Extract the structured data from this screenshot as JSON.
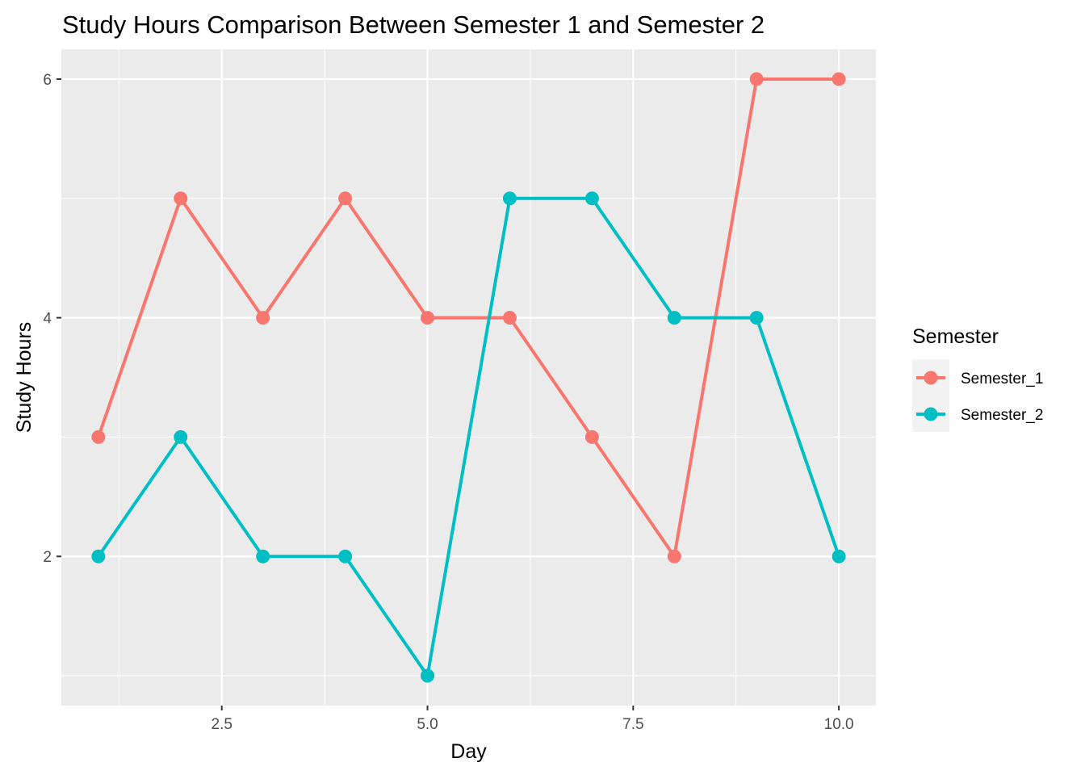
{
  "chart_data": {
    "type": "line",
    "title": "Study Hours Comparison Between Semester 1 and Semester 2",
    "xlabel": "Day",
    "ylabel": "Study Hours",
    "x": [
      1,
      2,
      3,
      4,
      5,
      6,
      7,
      8,
      9,
      10
    ],
    "xlim": [
      0.55,
      10.45
    ],
    "ylim": [
      0.75,
      6.25
    ],
    "x_ticks": [
      2.5,
      5.0,
      7.5,
      10.0
    ],
    "x_tick_labels": [
      "2.5",
      "5.0",
      "7.5",
      "10.0"
    ],
    "x_minor_ticks": [
      1.25,
      3.75,
      6.25,
      8.75
    ],
    "y_ticks": [
      2,
      4,
      6
    ],
    "y_tick_labels": [
      "2",
      "4",
      "6"
    ],
    "y_minor_ticks": [
      1,
      3,
      5
    ],
    "grid": true,
    "legend": {
      "title": "Semester",
      "placement": "right"
    },
    "series": [
      {
        "name": "Semester_1",
        "color": "#F8766D",
        "values": [
          3,
          5,
          4,
          5,
          4,
          4,
          3,
          2,
          6,
          6
        ]
      },
      {
        "name": "Semester_2",
        "color": "#00BFC4",
        "values": [
          2,
          3,
          2,
          2,
          1,
          5,
          5,
          4,
          4,
          2
        ]
      }
    ],
    "panel_background": "#EBEBEB",
    "grid_color": "#FFFFFF"
  }
}
